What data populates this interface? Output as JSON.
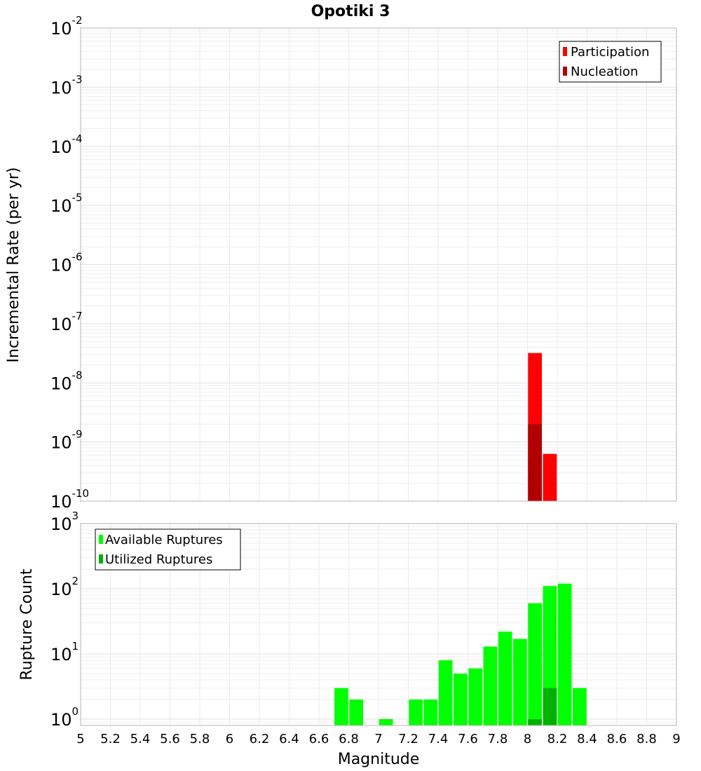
{
  "title": "Opotiki 3",
  "colors": {
    "participation": "#ff0000",
    "nucleation": "#b20000",
    "available": "#00ff00",
    "utilized": "#00b200"
  },
  "chart_data": [
    {
      "type": "bar",
      "panel": "top",
      "title": "Opotiki 3",
      "ylabel": "Incremental Rate (per yr)",
      "xlabel": "",
      "yscale": "log",
      "xlim": [
        5,
        9
      ],
      "ylim": [
        1e-10,
        0.01
      ],
      "ytick_labels": [
        "10^-10",
        "10^-9",
        "10^-8",
        "10^-7",
        "10^-6",
        "10^-5",
        "10^-4",
        "10^-3",
        "10^-2"
      ],
      "grid": true,
      "legend_position": "top-right",
      "series": [
        {
          "name": "Participation",
          "color": "#ff0000",
          "x": [
            8.05,
            8.15
          ],
          "values": [
            3.2e-08,
            6.3e-10
          ]
        },
        {
          "name": "Nucleation",
          "color": "#b20000",
          "x": [
            8.05
          ],
          "values": [
            2e-09
          ]
        }
      ]
    },
    {
      "type": "bar",
      "panel": "bottom",
      "ylabel": "Rupture Count",
      "xlabel": "Magnitude",
      "yscale": "log",
      "xlim": [
        5,
        9
      ],
      "ylim": [
        0.8,
        1000
      ],
      "ytick_labels": [
        "10^0",
        "10^1",
        "10^2",
        "10^3"
      ],
      "xticks": [
        5,
        5.2,
        5.4,
        5.6,
        5.8,
        6,
        6.2,
        6.4,
        6.6,
        6.8,
        7,
        7.2,
        7.4,
        7.6,
        7.8,
        8,
        8.2,
        8.4,
        8.6,
        8.8,
        9
      ],
      "grid": true,
      "legend_position": "top-left",
      "series": [
        {
          "name": "Available Ruptures",
          "color": "#00ff00",
          "x": [
            6.75,
            6.85,
            7.05,
            7.25,
            7.35,
            7.45,
            7.55,
            7.65,
            7.75,
            7.85,
            7.95,
            8.05,
            8.15,
            8.25,
            8.35
          ],
          "values": [
            3,
            2,
            1,
            2,
            2,
            8,
            5,
            6,
            13,
            22,
            17,
            60,
            110,
            120,
            3
          ]
        },
        {
          "name": "Utilized Ruptures",
          "color": "#00b200",
          "x": [
            8.05,
            8.15
          ],
          "values": [
            1,
            3
          ]
        }
      ]
    }
  ]
}
